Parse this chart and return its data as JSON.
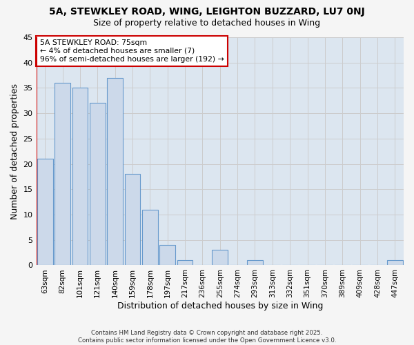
{
  "title_line1": "5A, STEWKLEY ROAD, WING, LEIGHTON BUZZARD, LU7 0NJ",
  "title_line2": "Size of property relative to detached houses in Wing",
  "xlabel": "Distribution of detached houses by size in Wing",
  "ylabel": "Number of detached properties",
  "categories": [
    "63sqm",
    "82sqm",
    "101sqm",
    "121sqm",
    "140sqm",
    "159sqm",
    "178sqm",
    "197sqm",
    "217sqm",
    "236sqm",
    "255sqm",
    "274sqm",
    "293sqm",
    "313sqm",
    "332sqm",
    "351sqm",
    "370sqm",
    "389sqm",
    "409sqm",
    "428sqm",
    "447sqm"
  ],
  "values": [
    21,
    36,
    35,
    32,
    37,
    18,
    11,
    4,
    1,
    0,
    3,
    0,
    1,
    0,
    0,
    0,
    0,
    0,
    0,
    0,
    1
  ],
  "bar_color": "#ccd9ea",
  "bar_edge_color": "#6699cc",
  "annotation_title": "5A STEWKLEY ROAD: 75sqm",
  "annotation_line1": "← 4% of detached houses are smaller (7)",
  "annotation_line2": "96% of semi-detached houses are larger (192) →",
  "annotation_box_color": "#ffffff",
  "annotation_box_edge": "#cc0000",
  "red_line_x": -0.5,
  "ylim": [
    0,
    45
  ],
  "yticks": [
    0,
    5,
    10,
    15,
    20,
    25,
    30,
    35,
    40,
    45
  ],
  "grid_color": "#cccccc",
  "plot_bg_color": "#dce6f0",
  "fig_bg_color": "#f5f5f5",
  "footer_line1": "Contains HM Land Registry data © Crown copyright and database right 2025.",
  "footer_line2": "Contains public sector information licensed under the Open Government Licence v3.0."
}
